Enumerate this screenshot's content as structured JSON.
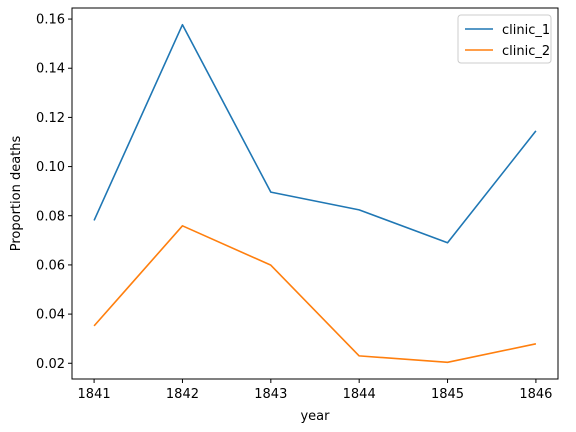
{
  "chart_data": {
    "type": "line",
    "title": "",
    "xlabel": "year",
    "ylabel": "Proportion deaths",
    "x": [
      1841,
      1842,
      1843,
      1844,
      1845,
      1846
    ],
    "series": [
      {
        "name": "clinic_1",
        "color": "#1f77b4",
        "values": [
          0.0781,
          0.1577,
          0.0896,
          0.0824,
          0.069,
          0.1145
        ]
      },
      {
        "name": "clinic_2",
        "color": "#ff7f0e",
        "values": [
          0.0352,
          0.0759,
          0.0599,
          0.023,
          0.0204,
          0.0279
        ]
      }
    ],
    "xlim": [
      1840.75,
      1846.25
    ],
    "ylim": [
      0.0136,
      0.1645
    ],
    "xticks": [
      "1841",
      "1842",
      "1843",
      "1844",
      "1845",
      "1846"
    ],
    "yticks": [
      "0.02",
      "0.04",
      "0.06",
      "0.08",
      "0.10",
      "0.12",
      "0.14",
      "0.16"
    ],
    "ytick_values": [
      0.02,
      0.04,
      0.06,
      0.08,
      0.1,
      0.12,
      0.14,
      0.16
    ],
    "grid": false,
    "legend_position": "top-right"
  }
}
